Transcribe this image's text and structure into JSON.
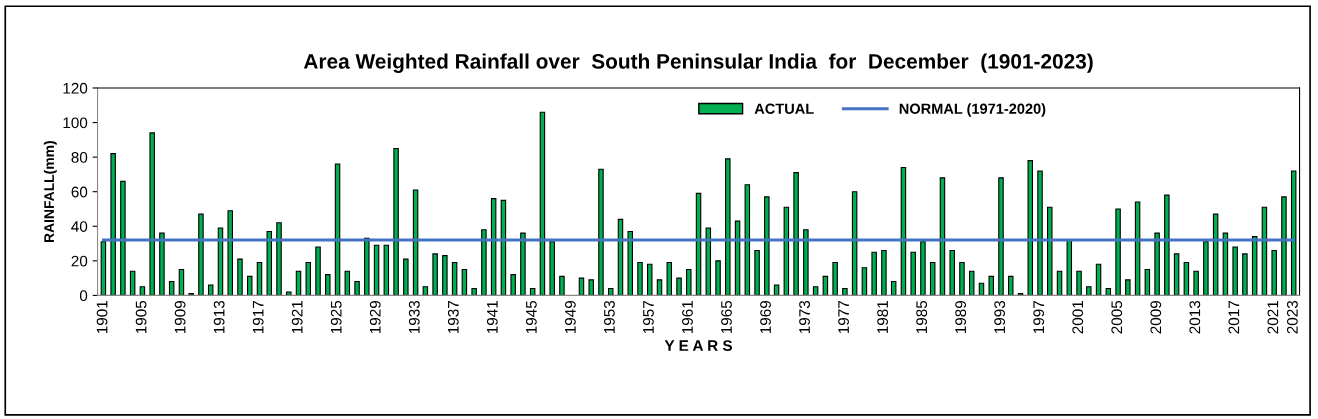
{
  "chart_data": {
    "type": "bar",
    "title": "Area Weighted Rainfall over  South Peninsular India  for  December  (1901-2023)",
    "xlabel": "Y E A R S",
    "ylabel": "RAINFALL(mm)",
    "categories": [
      "1901",
      null,
      null,
      null,
      "1905",
      null,
      null,
      null,
      "1909",
      null,
      null,
      null,
      "1913",
      null,
      null,
      null,
      "1917",
      null,
      null,
      null,
      "1921",
      null,
      null,
      null,
      "1925",
      null,
      null,
      null,
      "1929",
      null,
      null,
      null,
      "1933",
      null,
      null,
      null,
      "1937",
      null,
      null,
      null,
      "1941",
      null,
      null,
      null,
      "1945",
      null,
      null,
      null,
      "1949",
      null,
      null,
      null,
      "1953",
      null,
      null,
      null,
      "1957",
      null,
      null,
      null,
      "1961",
      null,
      null,
      null,
      "1965",
      null,
      null,
      null,
      "1969",
      null,
      null,
      null,
      "1973",
      null,
      null,
      null,
      "1977",
      null,
      null,
      null,
      "1981",
      null,
      null,
      null,
      "1985",
      null,
      null,
      null,
      "1989",
      null,
      null,
      null,
      "1993",
      null,
      null,
      null,
      "1997",
      null,
      null,
      null,
      "2001",
      null,
      null,
      null,
      "2005",
      null,
      null,
      null,
      "2009",
      null,
      null,
      null,
      "2013",
      null,
      null,
      null,
      "2017",
      null,
      null,
      null,
      "2021",
      null,
      "2023"
    ],
    "series": [
      {
        "name": "ACTUAL",
        "color": "#00b050",
        "values": [
          31,
          82,
          66,
          14,
          5,
          94,
          36,
          8,
          15,
          1,
          47,
          6,
          39,
          49,
          21,
          11,
          19,
          37,
          42,
          2,
          14,
          19,
          28,
          12,
          76,
          14,
          8,
          33,
          29,
          29,
          85,
          21,
          61,
          5,
          24,
          23,
          19,
          15,
          4,
          38,
          56,
          55,
          12,
          36,
          4,
          106,
          31,
          11,
          0,
          10,
          9,
          73,
          4,
          44,
          37,
          19,
          18,
          9,
          19,
          10,
          15,
          59,
          39,
          20,
          79,
          43,
          64,
          26,
          57,
          6,
          51,
          71,
          38,
          5,
          11,
          19,
          4,
          60,
          16,
          25,
          26,
          8,
          74,
          25,
          31,
          19,
          68,
          26,
          19,
          14,
          7,
          11,
          68,
          11,
          1,
          78,
          72,
          51,
          14,
          32,
          14,
          5,
          18,
          4,
          50,
          9,
          54,
          15,
          36,
          58,
          24,
          19,
          14,
          31,
          47,
          36,
          28,
          24,
          34,
          51,
          26,
          57,
          72
        ]
      }
    ],
    "ref_lines": [
      {
        "axis": "y",
        "value": 32,
        "label": "NORMAL (1971-2020)",
        "color": "#4472c4",
        "line_style": "solid"
      }
    ],
    "ylim": [
      0,
      120
    ],
    "yticks": [
      0,
      20,
      40,
      60,
      80,
      100,
      120
    ],
    "grid": false,
    "legend": "top right"
  }
}
